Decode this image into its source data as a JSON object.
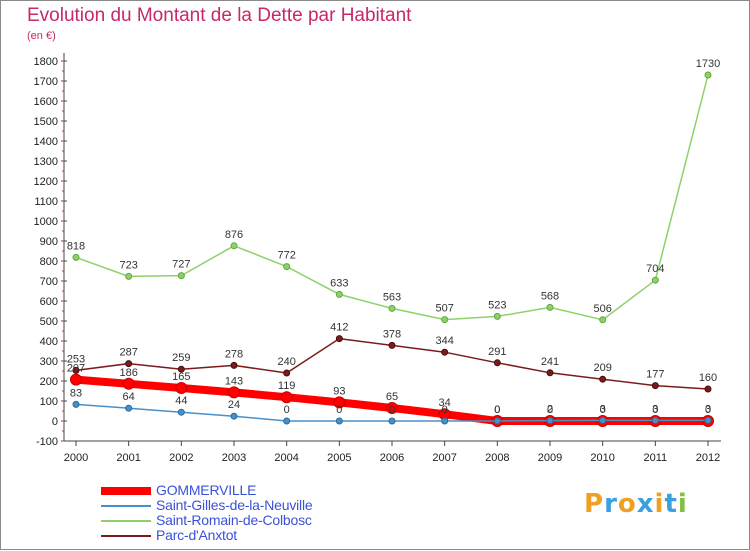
{
  "title": "Evolution du Montant de la Dette par Habitant",
  "unit": "(en €)",
  "logo": "Proxiti",
  "chart_data": {
    "type": "line",
    "title": "Evolution du Montant de la Dette par Habitant",
    "ylabel": "(en €)",
    "x": [
      "2000",
      "2001",
      "2002",
      "2003",
      "2004",
      "2005",
      "2006",
      "2007",
      "2008",
      "2009",
      "2010",
      "2011",
      "2012"
    ],
    "ylim": [
      -100,
      1800
    ],
    "yticks": [
      -100,
      0,
      100,
      200,
      300,
      400,
      500,
      600,
      700,
      800,
      900,
      1000,
      1100,
      1200,
      1300,
      1400,
      1500,
      1600,
      1700,
      1800
    ],
    "grid": false,
    "legend_position": "bottom-left",
    "series": [
      {
        "name": "GOMMERVILLE",
        "color": "#ff0000",
        "values": [
          207,
          186,
          165,
          143,
          119,
          93,
          65,
          34,
          0,
          0,
          0,
          0,
          0
        ],
        "labels": [
          "207",
          "186",
          "165",
          "143",
          "119",
          "93",
          "65",
          "34",
          "0",
          "0",
          "0",
          "0",
          "0"
        ]
      },
      {
        "name": "Saint-Gilles-de-la-Neuville",
        "color": "#4a90c8",
        "values": [
          83,
          64,
          44,
          24,
          0,
          0,
          0,
          0,
          0,
          2,
          3,
          3,
          3
        ],
        "labels": [
          "83",
          "64",
          "44",
          "24",
          "0",
          "0",
          "0",
          "0",
          "0",
          "2",
          "3",
          "3",
          "3"
        ]
      },
      {
        "name": "Saint-Romain-de-Colbosc",
        "color": "#8ed16b",
        "values": [
          818,
          723,
          727,
          876,
          772,
          633,
          563,
          507,
          523,
          568,
          506,
          704,
          1730
        ],
        "labels": [
          "818",
          "723",
          "727",
          "876",
          "772",
          "633",
          "563",
          "507",
          "523",
          "568",
          "506",
          "704",
          "1730"
        ]
      },
      {
        "name": "Parc-d'Anxtot",
        "color": "#7a1c1c",
        "values": [
          253,
          287,
          259,
          278,
          240,
          412,
          378,
          344,
          291,
          241,
          209,
          177,
          160
        ],
        "labels": [
          "253",
          "287",
          "259",
          "278",
          "240",
          "412",
          "378",
          "344",
          "291",
          "241",
          "209",
          "177",
          "160"
        ]
      }
    ]
  }
}
